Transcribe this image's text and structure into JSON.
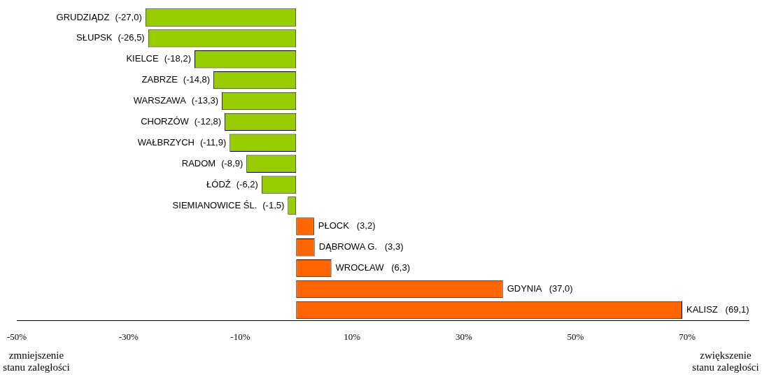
{
  "chart_data": {
    "type": "bar",
    "orientation": "horizontal",
    "categories": [
      "GRUDZIĄDZ",
      "SŁUPSK",
      "KIELCE",
      "ZABRZE",
      "WARSZAWA",
      "CHORZÓW",
      "WAŁBRZYCH",
      "RADOM",
      "ŁÓDŹ",
      "SIEMIANOWICE ŚL.",
      "PŁOCK",
      "DĄBROWA G.",
      "WROCŁAW",
      "GDYNIA",
      "KALISZ"
    ],
    "values": [
      -27.0,
      -26.5,
      -18.2,
      -14.8,
      -13.3,
      -12.8,
      -11.9,
      -8.9,
      -6.2,
      -1.5,
      3.2,
      3.3,
      6.3,
      37.0,
      69.1
    ],
    "value_labels": [
      "(-27,0)",
      "(-26,5)",
      "(-18,2)",
      "(-14,8)",
      "(-13,3)",
      "(-12,8)",
      "(-11,9)",
      "(-8,9)",
      "(-6,2)",
      "(-1,5)",
      "(3,2)",
      "(3,3)",
      "(6,3)",
      "(37,0)",
      "(69,1)"
    ],
    "colors": [
      "#99cc00",
      "#99cc00",
      "#99cc00",
      "#99cc00",
      "#99cc00",
      "#99cc00",
      "#99cc00",
      "#99cc00",
      "#99cc00",
      "#99cc00",
      "#ff6600",
      "#ff6600",
      "#ff6600",
      "#ff6600",
      "#ff6600"
    ],
    "xlim": [
      -50,
      81
    ],
    "xticks": [
      {
        "value": -50,
        "label": "-50%"
      },
      {
        "value": -30,
        "label": "-30%"
      },
      {
        "value": -10,
        "label": "-10%"
      },
      {
        "value": 10,
        "label": "10%"
      },
      {
        "value": 30,
        "label": "30%"
      },
      {
        "value": 50,
        "label": "50%"
      },
      {
        "value": 70,
        "label": "70%"
      }
    ],
    "grid": false,
    "legend": false,
    "annotations": [
      "zmniejszenie stanu zaległości",
      "zwiększenie stanu zaległości"
    ]
  }
}
